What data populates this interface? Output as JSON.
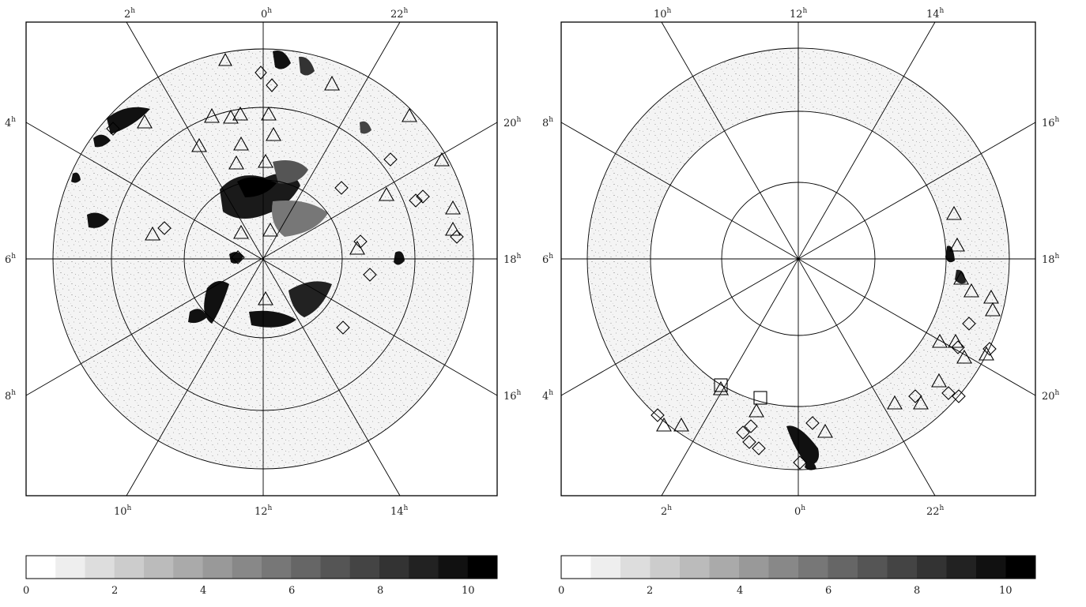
{
  "maps": [
    {
      "id": "north",
      "ra_labels_top": [
        "2h",
        "0h",
        "22h"
      ],
      "ra_labels_bottom": [
        "10h",
        "12h",
        "14h"
      ],
      "ra_labels_left": [
        "4h",
        "6h",
        "8h"
      ],
      "ra_labels_right": [
        "20h",
        "18h",
        "16h"
      ],
      "colorbar_ticks": [
        "0",
        "2",
        "4",
        "6",
        "8",
        "10"
      ]
    },
    {
      "id": "south",
      "ra_labels_top": [
        "10h",
        "12h",
        "14h"
      ],
      "ra_labels_bottom": [
        "2h",
        "0h",
        "22h"
      ],
      "ra_labels_left": [
        "8h",
        "6h",
        "4h"
      ],
      "ra_labels_right": [
        "16h",
        "18h",
        "20h"
      ],
      "colorbar_ticks": [
        "0",
        "2",
        "4",
        "6",
        "8",
        "10"
      ]
    }
  ],
  "colorbar": {
    "min": 0,
    "max": 10,
    "steps": 16,
    "color_low": "#ffffff",
    "color_high": "#000000"
  }
}
